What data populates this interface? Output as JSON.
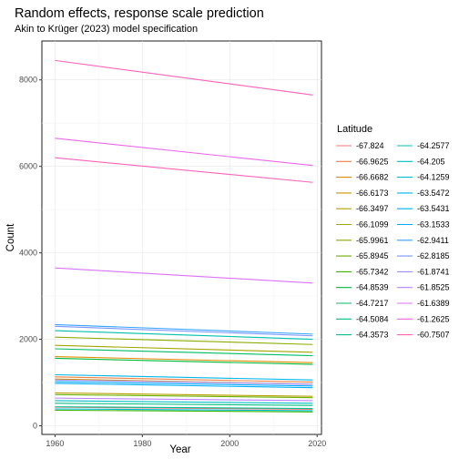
{
  "chart_data": {
    "type": "line",
    "title": "Random effects, response scale prediction",
    "subtitle": "Akin to Krüger (2023) model specification",
    "xlabel": "Year",
    "ylabel": "Count",
    "xlim": [
      1957,
      2021
    ],
    "ylim": [
      -200,
      8900
    ],
    "x_ticks": [
      1960,
      1980,
      2000,
      2020
    ],
    "y_ticks": [
      0,
      2000,
      4000,
      6000,
      8000
    ],
    "grid": true,
    "legend_title": "Latitude",
    "legend_position": "right",
    "series": [
      {
        "name": "-67.824",
        "color": "#F8766D",
        "start": 430,
        "end": 380
      },
      {
        "name": "-66.9625",
        "color": "#EE8043",
        "start": 1130,
        "end": 1010
      },
      {
        "name": "-66.6682",
        "color": "#E08B00",
        "start": 1600,
        "end": 1460
      },
      {
        "name": "-66.6173",
        "color": "#CD9600",
        "start": 1080,
        "end": 960
      },
      {
        "name": "-66.3497",
        "color": "#B79F00",
        "start": 760,
        "end": 680
      },
      {
        "name": "-66.1099",
        "color": "#A3A500",
        "start": 1860,
        "end": 1700
      },
      {
        "name": "-65.9961",
        "color": "#8AAB00",
        "start": 2050,
        "end": 1880
      },
      {
        "name": "-65.8945",
        "color": "#6BB100",
        "start": 720,
        "end": 650
      },
      {
        "name": "-65.7342",
        "color": "#39B600",
        "start": 360,
        "end": 320
      },
      {
        "name": "-64.8539",
        "color": "#00BA38",
        "start": 1560,
        "end": 1420
      },
      {
        "name": "-64.7217",
        "color": "#00BD63",
        "start": 1780,
        "end": 1620
      },
      {
        "name": "-64.5084",
        "color": "#00BF7D",
        "start": 520,
        "end": 470
      },
      {
        "name": "-64.3573",
        "color": "#00C094",
        "start": 440,
        "end": 400
      },
      {
        "name": "-64.2577",
        "color": "#00C0AA",
        "start": 2200,
        "end": 2000
      },
      {
        "name": "-64.205",
        "color": "#00BFC4",
        "start": 580,
        "end": 520
      },
      {
        "name": "-64.1259",
        "color": "#00BCD8",
        "start": 390,
        "end": 350
      },
      {
        "name": "-63.5472",
        "color": "#00B6EB",
        "start": 1180,
        "end": 1060
      },
      {
        "name": "-63.5431",
        "color": "#00B0F6",
        "start": 980,
        "end": 880
      },
      {
        "name": "-63.1533",
        "color": "#00A9FF",
        "start": 1020,
        "end": 920
      },
      {
        "name": "-62.9411",
        "color": "#35A2FF",
        "start": 2340,
        "end": 2120
      },
      {
        "name": "-62.8185",
        "color": "#7997FF",
        "start": 2300,
        "end": 2080
      },
      {
        "name": "-61.8741",
        "color": "#9F8CFF",
        "start": 1060,
        "end": 960
      },
      {
        "name": "-61.8525",
        "color": "#BD81FF",
        "start": 640,
        "end": 580
      },
      {
        "name": "-61.6389",
        "color": "#DB72FB",
        "start": 3650,
        "end": 3300
      },
      {
        "name": "-61.2625",
        "color": "#EE67EC",
        "start": 6650,
        "end": 6020
      },
      {
        "name": "-60.7507",
        "color": "#FF62BC",
        "start": 8450,
        "end": 7650
      },
      {
        "name": "",
        "color": "#FF62BC",
        "start": 6200,
        "end": 5630
      }
    ]
  }
}
